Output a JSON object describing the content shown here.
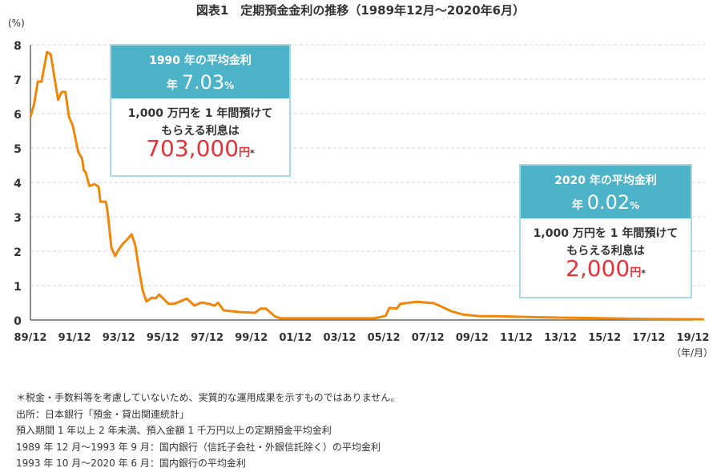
{
  "chart_data": {
    "type": "line",
    "title": "図表1　定期預金金利の推移（1989年12月～2020年6月）",
    "ylabel": "(%)",
    "xlabel": "（年/月）",
    "ylim": [
      0,
      8
    ],
    "yticks": [
      "0",
      "1",
      "2",
      "3",
      "4",
      "5",
      "6",
      "7",
      "8"
    ],
    "xticks": [
      "89/12",
      "91/12",
      "93/12",
      "95/12",
      "97/12",
      "99/12",
      "01/12",
      "03/12",
      "05/12",
      "07/12",
      "09/12",
      "11/12",
      "13/12",
      "15/12",
      "17/12",
      "19/12"
    ],
    "xrange": [
      "1989-12",
      "2019-12"
    ],
    "grid": true,
    "line_color": "#f0860a",
    "series": [
      {
        "x": [
          "1989-12",
          "1990-02",
          "1990-04",
          "1990-06",
          "1990-09",
          "1990-11",
          "1991-03",
          "1991-05",
          "1991-07",
          "1991-09",
          "1991-11",
          "1992-02",
          "1992-04",
          "1992-05",
          "1992-06",
          "1992-08",
          "1992-11",
          "1993-01",
          "1993-02",
          "1993-05",
          "1993-06",
          "1993-08",
          "1993-10",
          "1993-12",
          "1994-02",
          "1994-05",
          "1994-07",
          "1994-09",
          "1994-11",
          "1995-01",
          "1995-03",
          "1995-06",
          "1995-08",
          "1995-10",
          "1996-03",
          "1996-06",
          "1997-01",
          "1997-05",
          "1997-09",
          "1998-01",
          "1998-04",
          "1998-06",
          "1998-09",
          "1999-06",
          "2000-02",
          "2000-05",
          "2000-08",
          "2001-01",
          "2001-04",
          "2005-07",
          "2006-01",
          "2006-03",
          "2006-07",
          "2006-09",
          "2007-06",
          "2008-03",
          "2008-06",
          "2009-01",
          "2009-07",
          "2010-04",
          "2011-02",
          "2013-01",
          "2016-01",
          "2018-01",
          "2020-06"
        ],
        "values": [
          5.9,
          6.28,
          6.93,
          6.93,
          7.79,
          7.72,
          6.4,
          6.63,
          6.63,
          5.9,
          5.65,
          4.88,
          4.7,
          4.35,
          4.3,
          3.9,
          3.95,
          3.88,
          3.44,
          3.44,
          3.1,
          2.1,
          1.86,
          2.05,
          2.2,
          2.37,
          2.49,
          2.17,
          1.47,
          0.86,
          0.54,
          0.65,
          0.63,
          0.74,
          0.47,
          0.47,
          0.62,
          0.42,
          0.51,
          0.47,
          0.42,
          0.5,
          0.28,
          0.23,
          0.21,
          0.33,
          0.33,
          0.1,
          0.05,
          0.05,
          0.12,
          0.35,
          0.33,
          0.47,
          0.53,
          0.49,
          0.42,
          0.25,
          0.16,
          0.11,
          0.11,
          0.08,
          0.05,
          0.03,
          0.02
        ]
      }
    ]
  },
  "callouts": [
    {
      "heading": "1990 年の平均金利",
      "rate_prefix": "年",
      "rate": "7.03",
      "rate_unit": "%",
      "text1": "1,000 万円を 1 年間預けて",
      "text2": "もらえる利息は",
      "amount": "703,000",
      "amount_unit": "円",
      "mark": "*"
    },
    {
      "heading": "2020 年の平均金利",
      "rate_prefix": "年",
      "rate": "0.02",
      "rate_unit": "%",
      "text1": "1,000 万円を 1 年間預けて",
      "text2": "もらえる利息は",
      "amount": "2,000",
      "amount_unit": "円",
      "mark": "*"
    }
  ],
  "colors": {
    "callout_header": "#4db3c9",
    "amount": "#e8333a"
  },
  "notes": [
    "＊税金・手数料等を考慮していないため、実質的な運用成果を示すものではありません。",
    "出所：日本銀行「預金・貸出関連統計」",
    "預入期間 1 年以上 2 年未満、預入金額 1 千万円以上の定期預金平均金利",
    "1989 年 12 月～1993 年 9 月：国内銀行（信託子会社・外銀信託除く）の平均金利",
    "1993 年 10 月～2020 年 6 月：国内銀行の平均金利"
  ]
}
